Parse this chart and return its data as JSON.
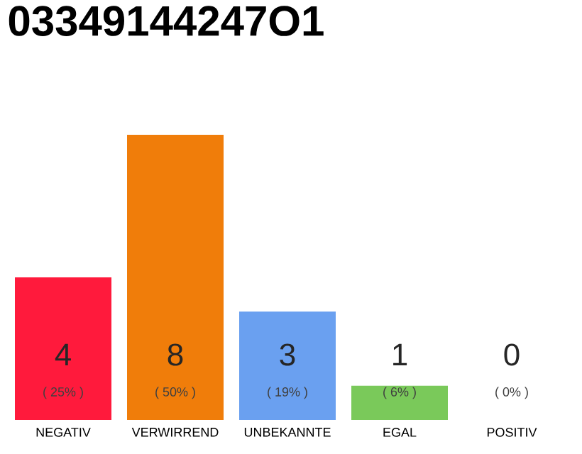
{
  "chart_data": {
    "type": "bar",
    "title": "03349144247O1",
    "categories": [
      "NEGATIV",
      "VERWIRREND",
      "UNBEKANNTE",
      "EGAL",
      "POSITIV"
    ],
    "values": [
      25,
      50,
      19,
      6,
      0
    ],
    "colors": [
      "#ff1a3c",
      "#f07d0a",
      "#6aa0f0",
      "#7ac95a",
      "#2eaa4a"
    ],
    "ylim": [
      0,
      50
    ],
    "value_labels": [
      "( 25% )",
      "( 50% )",
      "( 19% )",
      "( 6% )",
      "( 0% )"
    ],
    "annotations": [
      "4",
      "8",
      "3",
      "1",
      "0"
    ],
    "tick_labels": "x"
  }
}
